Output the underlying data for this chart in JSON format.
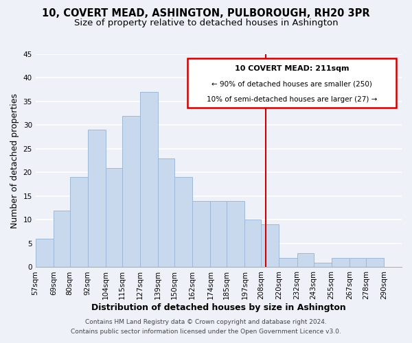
{
  "title": "10, COVERT MEAD, ASHINGTON, PULBOROUGH, RH20 3PR",
  "subtitle": "Size of property relative to detached houses in Ashington",
  "xlabel": "Distribution of detached houses by size in Ashington",
  "ylabel": "Number of detached properties",
  "bar_left_edges": [
    57,
    69,
    80,
    92,
    104,
    115,
    127,
    139,
    150,
    162,
    174,
    185,
    197,
    208,
    220,
    232,
    243,
    255,
    267,
    278
  ],
  "bar_heights": [
    6,
    12,
    19,
    29,
    21,
    32,
    37,
    23,
    19,
    14,
    14,
    14,
    10,
    9,
    2,
    3,
    1,
    2,
    2,
    2
  ],
  "bar_widths": [
    12,
    11,
    12,
    12,
    11,
    12,
    12,
    11,
    12,
    12,
    11,
    12,
    11,
    12,
    12,
    11,
    12,
    12,
    11,
    12
  ],
  "bar_color": "#c8d9ed",
  "bar_edgecolor": "#a0b8d8",
  "vline_x": 211,
  "vline_color": "#cc0000",
  "ylim": [
    0,
    45
  ],
  "yticks": [
    0,
    5,
    10,
    15,
    20,
    25,
    30,
    35,
    40,
    45
  ],
  "xlim_left": 57,
  "xlim_right": 302,
  "xtick_labels": [
    "57sqm",
    "69sqm",
    "80sqm",
    "92sqm",
    "104sqm",
    "115sqm",
    "127sqm",
    "139sqm",
    "150sqm",
    "162sqm",
    "174sqm",
    "185sqm",
    "197sqm",
    "208sqm",
    "220sqm",
    "232sqm",
    "243sqm",
    "255sqm",
    "267sqm",
    "278sqm",
    "290sqm"
  ],
  "xtick_positions": [
    57,
    69,
    80,
    92,
    104,
    115,
    127,
    139,
    150,
    162,
    174,
    185,
    197,
    208,
    220,
    232,
    243,
    255,
    267,
    278,
    290
  ],
  "annotation_title": "10 COVERT MEAD: 211sqm",
  "annotation_line1": "← 90% of detached houses are smaller (250)",
  "annotation_line2": "10% of semi-detached houses are larger (27) →",
  "footer_line1": "Contains HM Land Registry data © Crown copyright and database right 2024.",
  "footer_line2": "Contains public sector information licensed under the Open Government Licence v3.0.",
  "background_color": "#eef2f8",
  "grid_color": "#ffffff",
  "title_fontsize": 10.5,
  "subtitle_fontsize": 9.5,
  "axis_label_fontsize": 9,
  "tick_fontsize": 7.5,
  "footer_fontsize": 6.5,
  "ann_fontsize_title": 8,
  "ann_fontsize_lines": 7.5
}
